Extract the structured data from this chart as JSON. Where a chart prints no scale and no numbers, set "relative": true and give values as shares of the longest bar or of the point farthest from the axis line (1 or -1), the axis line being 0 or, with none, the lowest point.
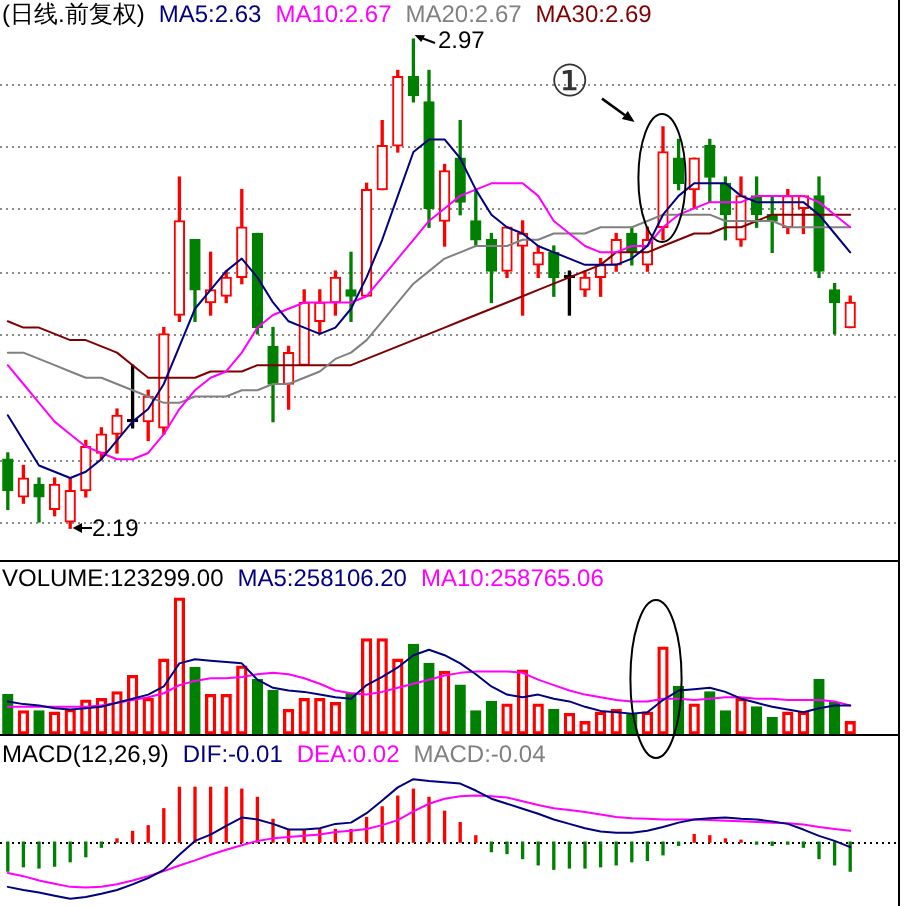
{
  "chart_data": [
    {
      "type": "candlestick",
      "title": "(日线.前复权)",
      "categories": [
        null,
        null,
        null,
        null,
        null,
        null,
        null,
        null,
        null,
        null,
        null,
        null,
        null,
        null,
        null,
        null,
        null,
        null,
        null,
        null,
        null,
        null,
        null,
        null,
        null,
        null,
        null,
        null,
        null,
        null,
        null,
        null,
        null,
        null,
        null,
        null,
        null,
        null,
        null,
        null,
        null,
        null,
        null,
        null,
        null,
        null,
        null,
        null,
        null,
        null,
        null,
        null,
        null,
        null,
        null
      ],
      "ohlc": [
        [
          2.3,
          2.31,
          2.22,
          2.25
        ],
        [
          2.24,
          2.29,
          2.23,
          2.27
        ],
        [
          2.26,
          2.27,
          2.2,
          2.24
        ],
        [
          2.22,
          2.27,
          2.21,
          2.26
        ],
        [
          2.2,
          2.27,
          2.19,
          2.25
        ],
        [
          2.25,
          2.33,
          2.24,
          2.32
        ],
        [
          2.31,
          2.35,
          2.3,
          2.34
        ],
        [
          2.34,
          2.38,
          2.31,
          2.37
        ],
        [
          2.36,
          2.45,
          2.35,
          2.36
        ],
        [
          2.36,
          2.41,
          2.33,
          2.4
        ],
        [
          2.35,
          2.51,
          2.34,
          2.5
        ],
        [
          2.53,
          2.75,
          2.52,
          2.68
        ],
        [
          2.65,
          2.65,
          2.52,
          2.57
        ],
        [
          2.55,
          2.63,
          2.53,
          2.57
        ],
        [
          2.56,
          2.6,
          2.55,
          2.59
        ],
        [
          2.59,
          2.73,
          2.58,
          2.67
        ],
        [
          2.66,
          2.66,
          2.5,
          2.51
        ],
        [
          2.48,
          2.51,
          2.36,
          2.42
        ],
        [
          2.42,
          2.48,
          2.38,
          2.47
        ],
        [
          2.45,
          2.57,
          2.45,
          2.55
        ],
        [
          2.52,
          2.57,
          2.5,
          2.55
        ],
        [
          2.55,
          2.6,
          2.53,
          2.59
        ],
        [
          2.57,
          2.63,
          2.52,
          2.56
        ],
        [
          2.56,
          2.74,
          2.56,
          2.73
        ],
        [
          2.73,
          2.84,
          2.73,
          2.8
        ],
        [
          2.8,
          2.92,
          2.79,
          2.91
        ],
        [
          2.91,
          2.97,
          2.87,
          2.88
        ],
        [
          2.87,
          2.92,
          2.67,
          2.7
        ],
        [
          2.68,
          2.77,
          2.64,
          2.76
        ],
        [
          2.78,
          2.84,
          2.69,
          2.71
        ],
        [
          2.68,
          2.73,
          2.64,
          2.65
        ],
        [
          2.65,
          2.66,
          2.55,
          2.6
        ],
        [
          2.6,
          2.67,
          2.59,
          2.67
        ],
        [
          2.64,
          2.68,
          2.53,
          2.66
        ],
        [
          2.61,
          2.64,
          2.59,
          2.63
        ],
        [
          2.63,
          2.64,
          2.56,
          2.59
        ],
        [
          2.59,
          2.6,
          2.53,
          2.59
        ],
        [
          2.57,
          2.6,
          2.56,
          2.59
        ],
        [
          2.59,
          2.62,
          2.56,
          2.61
        ],
        [
          2.61,
          2.66,
          2.6,
          2.65
        ],
        [
          2.66,
          2.67,
          2.61,
          2.63
        ],
        [
          2.61,
          2.67,
          2.6,
          2.65
        ],
        [
          2.67,
          2.83,
          2.65,
          2.79
        ],
        [
          2.78,
          2.81,
          2.73,
          2.74
        ],
        [
          2.73,
          2.78,
          2.7,
          2.78
        ],
        [
          2.8,
          2.81,
          2.71,
          2.75
        ],
        [
          2.74,
          2.75,
          2.65,
          2.69
        ],
        [
          2.65,
          2.75,
          2.64,
          2.72
        ],
        [
          2.72,
          2.75,
          2.67,
          2.69
        ],
        [
          2.69,
          2.72,
          2.63,
          2.68
        ],
        [
          2.67,
          2.73,
          2.66,
          2.72
        ],
        [
          2.7,
          2.72,
          2.66,
          2.72
        ],
        [
          2.72,
          2.75,
          2.59,
          2.6
        ],
        [
          2.57,
          2.58,
          2.5,
          2.55
        ],
        [
          2.51,
          2.56,
          2.51,
          2.55
        ]
      ],
      "colors": [
        "#008000",
        "#ff0000",
        "#008000",
        "#ff0000",
        "#ff0000",
        "#ff0000",
        "#ff0000",
        "#ff0000",
        "#000000",
        "#ff0000",
        "#ff0000",
        "#ff0000",
        "#008000",
        "#ff0000",
        "#ff0000",
        "#ff0000",
        "#008000",
        "#008000",
        "#ff0000",
        "#ff0000",
        "#ff0000",
        "#ff0000",
        "#008000",
        "#ff0000",
        "#ff0000",
        "#ff0000",
        "#008000",
        "#008000",
        "#ff0000",
        "#008000",
        "#008000",
        "#008000",
        "#ff0000",
        "#ff0000",
        "#ff0000",
        "#008000",
        "#000000",
        "#ff0000",
        "#ff0000",
        "#ff0000",
        "#008000",
        "#ff0000",
        "#ff0000",
        "#008000",
        "#ff0000",
        "#008000",
        "#008000",
        "#ff0000",
        "#008000",
        "#008000",
        "#ff0000",
        "#ff0000",
        "#008000",
        "#008000",
        "#ff0000"
      ],
      "series": [
        {
          "name": "MA5:2.63",
          "type": "line",
          "color": "#000080",
          "values": [
            2.37,
            2.33,
            2.29,
            2.28,
            2.27,
            2.28,
            2.3,
            2.33,
            2.36,
            2.38,
            2.42,
            2.48,
            2.54,
            2.57,
            2.6,
            2.62,
            2.59,
            2.55,
            2.52,
            2.51,
            2.5,
            2.51,
            2.54,
            2.59,
            2.65,
            2.72,
            2.79,
            2.81,
            2.81,
            2.78,
            2.73,
            2.69,
            2.67,
            2.66,
            2.64,
            2.63,
            2.62,
            2.61,
            2.61,
            2.61,
            2.62,
            2.64,
            2.69,
            2.72,
            2.74,
            2.74,
            2.74,
            2.72,
            2.71,
            2.71,
            2.71,
            2.71,
            2.69,
            2.66,
            2.63
          ]
        },
        {
          "name": "MA10:2.67",
          "type": "line",
          "color": "#ff00ff",
          "values": [
            2.45,
            2.42,
            2.39,
            2.36,
            2.34,
            2.32,
            2.31,
            2.3,
            2.3,
            2.31,
            2.34,
            2.38,
            2.41,
            2.43,
            2.44,
            2.47,
            2.51,
            2.53,
            2.54,
            2.55,
            2.55,
            2.55,
            2.55,
            2.56,
            2.59,
            2.62,
            2.65,
            2.68,
            2.7,
            2.72,
            2.73,
            2.74,
            2.74,
            2.74,
            2.72,
            2.68,
            2.66,
            2.64,
            2.63,
            2.63,
            2.64,
            2.64,
            2.67,
            2.69,
            2.7,
            2.71,
            2.71,
            2.71,
            2.72,
            2.72,
            2.72,
            2.72,
            2.71,
            2.69,
            2.67
          ]
        },
        {
          "name": "MA20:2.67",
          "type": "line",
          "color": "#808080",
          "values": [
            2.47,
            2.47,
            2.46,
            2.45,
            2.44,
            2.43,
            2.43,
            2.42,
            2.41,
            2.4,
            2.39,
            2.39,
            2.4,
            2.4,
            2.4,
            2.41,
            2.41,
            2.42,
            2.42,
            2.43,
            2.44,
            2.46,
            2.47,
            2.49,
            2.52,
            2.55,
            2.58,
            2.6,
            2.62,
            2.63,
            2.64,
            2.64,
            2.64,
            2.65,
            2.65,
            2.66,
            2.66,
            2.66,
            2.67,
            2.67,
            2.67,
            2.68,
            2.69,
            2.69,
            2.69,
            2.69,
            2.68,
            2.68,
            2.68,
            2.68,
            2.67,
            2.67,
            2.67,
            2.67,
            2.67
          ]
        },
        {
          "name": "MA30:2.69",
          "type": "line",
          "color": "#800000",
          "values": [
            2.52,
            2.51,
            2.51,
            2.5,
            2.49,
            2.49,
            2.48,
            2.47,
            2.45,
            2.43,
            2.43,
            2.43,
            2.43,
            2.44,
            2.44,
            2.44,
            2.45,
            2.45,
            2.45,
            2.45,
            2.45,
            2.45,
            2.45,
            2.46,
            2.47,
            2.48,
            2.49,
            2.5,
            2.51,
            2.52,
            2.53,
            2.54,
            2.55,
            2.56,
            2.57,
            2.58,
            2.59,
            2.6,
            2.61,
            2.63,
            2.63,
            2.63,
            2.64,
            2.65,
            2.66,
            2.66,
            2.67,
            2.67,
            2.68,
            2.69,
            2.69,
            2.69,
            2.69,
            2.69,
            2.69
          ]
        }
      ],
      "annotations": [
        "2.97",
        "2.19",
        "①"
      ],
      "grid": "y",
      "legend": "top left",
      "tick_labels": false
    },
    {
      "type": "bar",
      "relative": true,
      "categories": [
        null,
        null,
        null,
        null,
        null,
        null,
        null,
        null,
        null,
        null,
        null,
        null,
        null,
        null,
        null,
        null,
        null,
        null,
        null,
        null,
        null,
        null,
        null,
        null,
        null,
        null,
        null,
        null,
        null,
        null,
        null,
        null,
        null,
        null,
        null,
        null,
        null,
        null,
        null,
        null,
        null,
        null,
        null,
        null,
        null,
        null,
        null,
        null,
        null,
        null,
        null,
        null,
        null,
        null,
        null
      ],
      "series": [
        {
          "name": "VOLUME:123299.00",
          "colors": [
            "#008000",
            "#ff0000",
            "#008000",
            "#ff0000",
            "#ff0000",
            "#ff0000",
            "#ff0000",
            "#ff0000",
            "#ff0000",
            "#ff0000",
            "#ff0000",
            "#ff0000",
            "#008000",
            "#ff0000",
            "#ff0000",
            "#ff0000",
            "#008000",
            "#008000",
            "#ff0000",
            "#ff0000",
            "#ff0000",
            "#ff0000",
            "#008000",
            "#ff0000",
            "#ff0000",
            "#ff0000",
            "#008000",
            "#008000",
            "#ff0000",
            "#008000",
            "#008000",
            "#008000",
            "#ff0000",
            "#ff0000",
            "#ff0000",
            "#008000",
            "#ff0000",
            "#ff0000",
            "#ff0000",
            "#ff0000",
            "#008000",
            "#ff0000",
            "#ff0000",
            "#008000",
            "#ff0000",
            "#008000",
            "#008000",
            "#ff0000",
            "#008000",
            "#008000",
            "#ff0000",
            "#ff0000",
            "#008000",
            "#008000",
            "#ff0000"
          ],
          "values": [
            0.29,
            0.17,
            0.17,
            0.16,
            0.18,
            0.25,
            0.26,
            0.31,
            0.43,
            0.26,
            0.55,
            1.0,
            0.49,
            0.29,
            0.29,
            0.5,
            0.4,
            0.32,
            0.18,
            0.26,
            0.26,
            0.23,
            0.3,
            0.7,
            0.7,
            0.55,
            0.66,
            0.52,
            0.46,
            0.36,
            0.17,
            0.24,
            0.22,
            0.47,
            0.22,
            0.18,
            0.15,
            0.09,
            0.16,
            0.18,
            0.15,
            0.16,
            0.64,
            0.35,
            0.22,
            0.31,
            0.17,
            0.26,
            0.2,
            0.12,
            0.16,
            0.16,
            0.4,
            0.23,
            0.09
          ]
        },
        {
          "name": "MA5:258106.20",
          "type": "line",
          "color": "#000080",
          "values": [
            0.24,
            0.22,
            0.21,
            0.19,
            0.18,
            0.19,
            0.2,
            0.23,
            0.26,
            0.29,
            0.35,
            0.52,
            0.55,
            0.54,
            0.53,
            0.52,
            0.4,
            0.34,
            0.32,
            0.31,
            0.29,
            0.27,
            0.26,
            0.36,
            0.42,
            0.49,
            0.58,
            0.62,
            0.58,
            0.52,
            0.44,
            0.35,
            0.29,
            0.27,
            0.29,
            0.26,
            0.24,
            0.2,
            0.17,
            0.16,
            0.15,
            0.16,
            0.25,
            0.32,
            0.33,
            0.34,
            0.31,
            0.26,
            0.23,
            0.2,
            0.18,
            0.16,
            0.19,
            0.21,
            0.21
          ]
        },
        {
          "name": "MA10:258765.06",
          "type": "line",
          "color": "#ff00ff",
          "values": [
            0.2,
            0.2,
            0.2,
            0.2,
            0.2,
            0.2,
            0.21,
            0.23,
            0.25,
            0.27,
            0.3,
            0.36,
            0.39,
            0.41,
            0.41,
            0.42,
            0.44,
            0.45,
            0.44,
            0.41,
            0.37,
            0.32,
            0.3,
            0.29,
            0.31,
            0.34,
            0.37,
            0.4,
            0.43,
            0.45,
            0.46,
            0.46,
            0.46,
            0.45,
            0.4,
            0.36,
            0.32,
            0.29,
            0.27,
            0.25,
            0.24,
            0.24,
            0.26,
            0.26,
            0.25,
            0.26,
            0.27,
            0.27,
            0.26,
            0.26,
            0.25,
            0.25,
            0.25,
            0.24,
            0.21
          ]
        }
      ],
      "legend": "top left",
      "tick_labels": false
    },
    {
      "type": "bar",
      "title": "MACD(12,26,9)",
      "relative": true,
      "categories": [
        null,
        null,
        null,
        null,
        null,
        null,
        null,
        null,
        null,
        null,
        null,
        null,
        null,
        null,
        null,
        null,
        null,
        null,
        null,
        null,
        null,
        null,
        null,
        null,
        null,
        null,
        null,
        null,
        null,
        null,
        null,
        null,
        null,
        null,
        null,
        null,
        null,
        null,
        null,
        null,
        null,
        null,
        null,
        null,
        null,
        null,
        null,
        null,
        null,
        null,
        null,
        null,
        null,
        null,
        null
      ],
      "series": [
        {
          "name": "DIF:-0.01",
          "type": "line",
          "color": "#000080",
          "values": [
            -0.71,
            -0.76,
            -0.8,
            -0.85,
            -0.9,
            -0.87,
            -0.82,
            -0.76,
            -0.67,
            -0.57,
            -0.44,
            -0.2,
            0.02,
            0.12,
            0.26,
            0.39,
            0.36,
            0.29,
            0.2,
            0.2,
            0.22,
            0.29,
            0.31,
            0.46,
            0.66,
            0.87,
            1.0,
            0.97,
            0.95,
            0.93,
            0.82,
            0.69,
            0.61,
            0.53,
            0.45,
            0.36,
            0.29,
            0.22,
            0.17,
            0.15,
            0.15,
            0.18,
            0.24,
            0.31,
            0.36,
            0.38,
            0.39,
            0.37,
            0.36,
            0.33,
            0.29,
            0.2,
            0.1,
            0.02,
            -0.08
          ]
        },
        {
          "name": "DEA:0.02",
          "type": "line",
          "color": "#ff00ff",
          "values": [
            -0.49,
            -0.54,
            -0.61,
            -0.66,
            -0.71,
            -0.72,
            -0.71,
            -0.67,
            -0.61,
            -0.54,
            -0.46,
            -0.37,
            -0.29,
            -0.2,
            -0.12,
            -0.05,
            0.02,
            0.06,
            0.08,
            0.1,
            0.12,
            0.16,
            0.18,
            0.21,
            0.27,
            0.35,
            0.49,
            0.61,
            0.69,
            0.73,
            0.74,
            0.73,
            0.71,
            0.65,
            0.59,
            0.54,
            0.51,
            0.48,
            0.44,
            0.4,
            0.38,
            0.37,
            0.36,
            0.36,
            0.36,
            0.35,
            0.34,
            0.33,
            0.32,
            0.31,
            0.3,
            0.28,
            0.24,
            0.21,
            0.18
          ]
        },
        {
          "colors": [
            "#008000",
            "#008000",
            "#008000",
            "#008000",
            "#008000",
            "#008000",
            "#008000",
            "#ff0000",
            "#ff0000",
            "#ff0000",
            "#ff0000",
            "#ff0000",
            "#ff0000",
            "#ff0000",
            "#ff0000",
            "#ff0000",
            "#ff0000",
            "#ff0000",
            "#ff0000",
            "#ff0000",
            "#ff0000",
            "#ff0000",
            "#ff0000",
            "#ff0000",
            "#ff0000",
            "#ff0000",
            "#ff0000",
            "#ff0000",
            "#ff0000",
            "#ff0000",
            "#ff0000",
            "#008000",
            "#008000",
            "#008000",
            "#008000",
            "#008000",
            "#008000",
            "#008000",
            "#008000",
            "#008000",
            "#008000",
            "#008000",
            "#008000",
            "#008000",
            "#ff0000",
            "#ff0000",
            "#ff0000",
            "#ff0000",
            "#008000",
            "#008000",
            "#008000",
            "#008000",
            "#008000",
            "#008000",
            "#008000"
          ],
          "values": [
            -0.46,
            -0.39,
            -0.41,
            -0.38,
            -0.31,
            -0.23,
            -0.08,
            0.05,
            0.17,
            0.26,
            0.53,
            0.87,
            0.87,
            0.87,
            0.87,
            0.84,
            0.71,
            0.36,
            0.2,
            0.2,
            0.2,
            0.2,
            0.2,
            0.39,
            0.56,
            0.73,
            0.84,
            0.71,
            0.49,
            0.31,
            0.1,
            -0.15,
            -0.18,
            -0.26,
            -0.36,
            -0.43,
            -0.41,
            -0.41,
            -0.39,
            -0.36,
            -0.31,
            -0.29,
            -0.2,
            -0.05,
            0.12,
            0.1,
            0.05,
            0.03,
            -0.03,
            -0.05,
            -0.03,
            -0.08,
            -0.26,
            -0.36,
            -0.46
          ]
        }
      ],
      "annotations": [
        "MACD:-0.04"
      ],
      "ref_lines": [
        {
          "axis": "y",
          "value": 0,
          "color": "#000000",
          "line_style": "dotted"
        }
      ],
      "legend": "top left",
      "tick_labels": false
    }
  ]
}
